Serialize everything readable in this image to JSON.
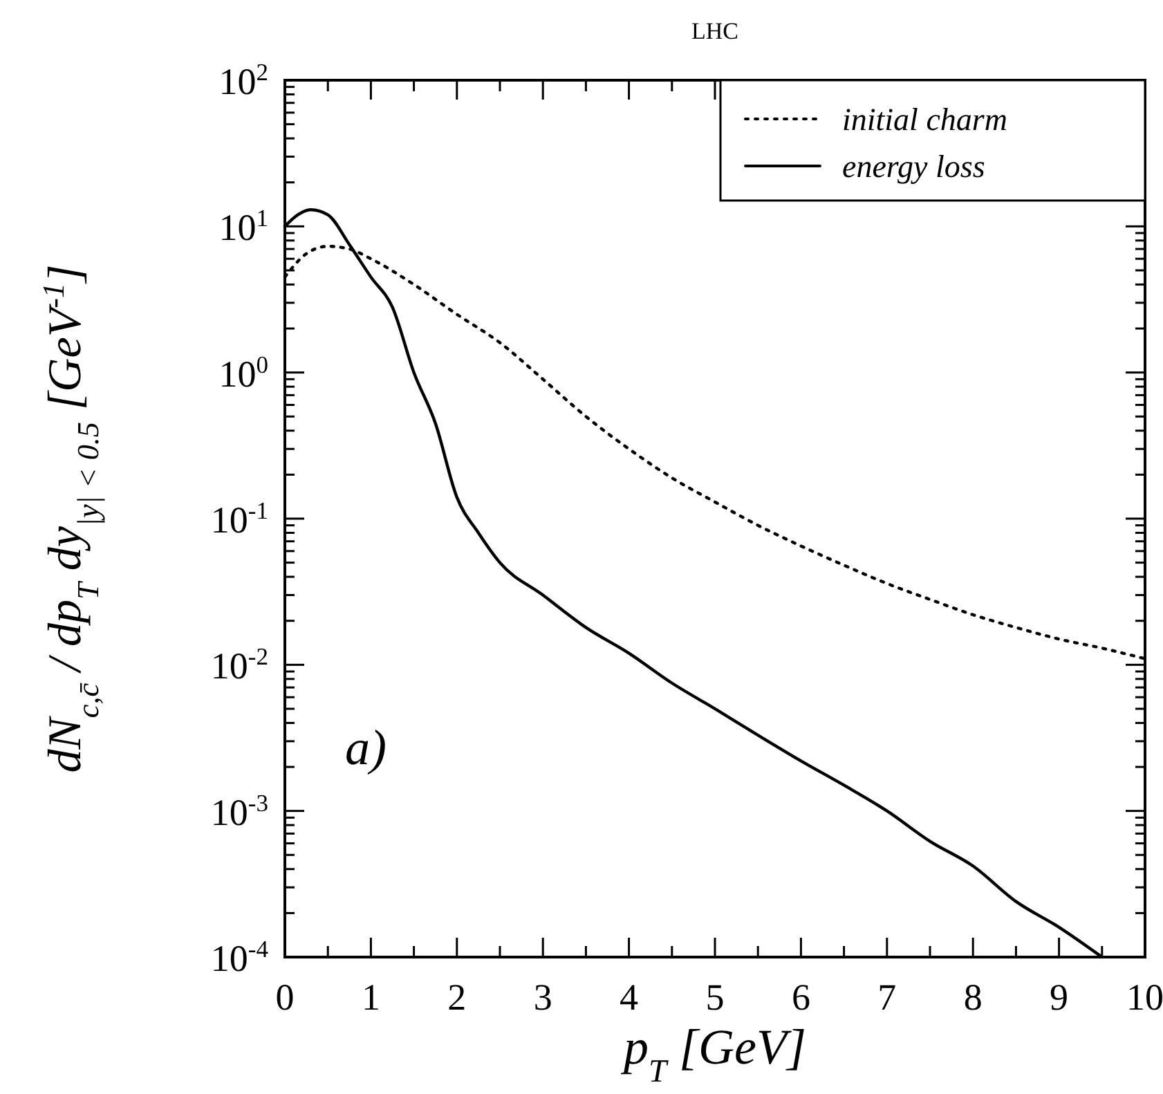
{
  "chart_data": {
    "type": "line",
    "title": "LHC",
    "xlabel": "p$_{T}$ [GeV]",
    "ylabel": "dN$_{c,c̄}$ / dp$_{T}$ dy$_{|y| < 0.5}$ [GeV$^{-1}$]",
    "annotations": [
      "a)"
    ],
    "log": "y",
    "legend": "top right",
    "grid": false,
    "xlim": [
      0,
      10
    ],
    "ylim": [
      0.0001,
      100
    ],
    "xticks": [
      0,
      {
        "value": 0.5,
        "label": null
      },
      1,
      {
        "value": 1.5,
        "label": null
      },
      2,
      {
        "value": 2.5,
        "label": null
      },
      3,
      {
        "value": 3.5,
        "label": null
      },
      4,
      {
        "value": 4.5,
        "label": null
      },
      5,
      {
        "value": 5.5,
        "label": null
      },
      6,
      {
        "value": 6.5,
        "label": null
      },
      7,
      {
        "value": 7.5,
        "label": null
      },
      8,
      {
        "value": 8.5,
        "label": null
      },
      9,
      {
        "value": 9.5,
        "label": null
      },
      10
    ],
    "yticks": [
      {
        "value": 0.0001,
        "label": "10$^{-4}$"
      },
      {
        "value": 0.0002,
        "label": null
      },
      {
        "value": 0.0003,
        "label": null
      },
      {
        "value": 0.0004,
        "label": null
      },
      {
        "value": 0.0005,
        "label": null
      },
      {
        "value": 0.0006,
        "label": null
      },
      {
        "value": 0.0007,
        "label": null
      },
      {
        "value": 0.0008,
        "label": null
      },
      {
        "value": 0.0009,
        "label": null
      },
      {
        "value": 0.001,
        "label": "10$^{-3}$"
      },
      {
        "value": 0.002,
        "label": null
      },
      {
        "value": 0.003,
        "label": null
      },
      {
        "value": 0.004,
        "label": null
      },
      {
        "value": 0.005,
        "label": null
      },
      {
        "value": 0.006,
        "label": null
      },
      {
        "value": 0.007,
        "label": null
      },
      {
        "value": 0.008,
        "label": null
      },
      {
        "value": 0.009,
        "label": null
      },
      {
        "value": 0.01,
        "label": "10$^{-2}$"
      },
      {
        "value": 0.02,
        "label": null
      },
      {
        "value": 0.03,
        "label": null
      },
      {
        "value": 0.04,
        "label": null
      },
      {
        "value": 0.05,
        "label": null
      },
      {
        "value": 0.06,
        "label": null
      },
      {
        "value": 0.07,
        "label": null
      },
      {
        "value": 0.08,
        "label": null
      },
      {
        "value": 0.09,
        "label": null
      },
      {
        "value": 0.1,
        "label": "10$^{-1}$"
      },
      {
        "value": 0.2,
        "label": null
      },
      {
        "value": 0.3,
        "label": null
      },
      {
        "value": 0.4,
        "label": null
      },
      {
        "value": 0.5,
        "label": null
      },
      {
        "value": 0.6,
        "label": null
      },
      {
        "value": 0.7,
        "label": null
      },
      {
        "value": 0.8,
        "label": null
      },
      {
        "value": 0.9,
        "label": null
      },
      {
        "value": 1,
        "label": "10$^{0}$"
      },
      {
        "value": 2,
        "label": null
      },
      {
        "value": 3,
        "label": null
      },
      {
        "value": 4,
        "label": null
      },
      {
        "value": 5,
        "label": null
      },
      {
        "value": 6,
        "label": null
      },
      {
        "value": 7,
        "label": null
      },
      {
        "value": 8,
        "label": null
      },
      {
        "value": 9,
        "label": null
      },
      {
        "value": 10,
        "label": "10$^{1}$"
      },
      {
        "value": 20,
        "label": null
      },
      {
        "value": 30,
        "label": null
      },
      {
        "value": 40,
        "label": null
      },
      {
        "value": 50,
        "label": null
      },
      {
        "value": 60,
        "label": null
      },
      {
        "value": 70,
        "label": null
      },
      {
        "value": 80,
        "label": null
      },
      {
        "value": 90,
        "label": null
      },
      {
        "value": 100,
        "label": "10$^{2}$"
      }
    ],
    "series": [
      {
        "name": "initial charm",
        "color": "#000000",
        "line_style": "dotted",
        "x": [
          0,
          0.25,
          0.5,
          0.75,
          1,
          1.5,
          2,
          2.5,
          3,
          3.5,
          4,
          4.5,
          5,
          5.5,
          6,
          6.5,
          7,
          7.5,
          8,
          8.5,
          9,
          9.5,
          10
        ],
        "values": [
          4.5,
          6.5,
          7.3,
          7,
          6,
          4,
          2.5,
          1.6,
          0.9,
          0.5,
          0.3,
          0.19,
          0.13,
          0.09,
          0.065,
          0.048,
          0.036,
          0.028,
          0.022,
          0.018,
          0.015,
          0.013,
          0.011
        ]
      },
      {
        "name": "energy loss",
        "color": "#000000",
        "line_style": "solid",
        "x": [
          0,
          0.15,
          0.3,
          0.5,
          0.75,
          1,
          1.25,
          1.5,
          1.75,
          2,
          2.25,
          2.5,
          3,
          3.5,
          4,
          4.5,
          5,
          5.5,
          6,
          6.5,
          7,
          7.5,
          8,
          8.5,
          9,
          9.5
        ],
        "values": [
          10,
          12,
          13,
          12,
          7.5,
          4.5,
          2.8,
          1,
          0.45,
          0.14,
          0.08,
          0.05,
          0.03,
          0.018,
          0.012,
          0.0075,
          0.005,
          0.0033,
          0.0022,
          0.0015,
          0.001,
          0.00062,
          0.00042,
          0.00024,
          0.00016,
          0.0001
        ]
      }
    ]
  }
}
